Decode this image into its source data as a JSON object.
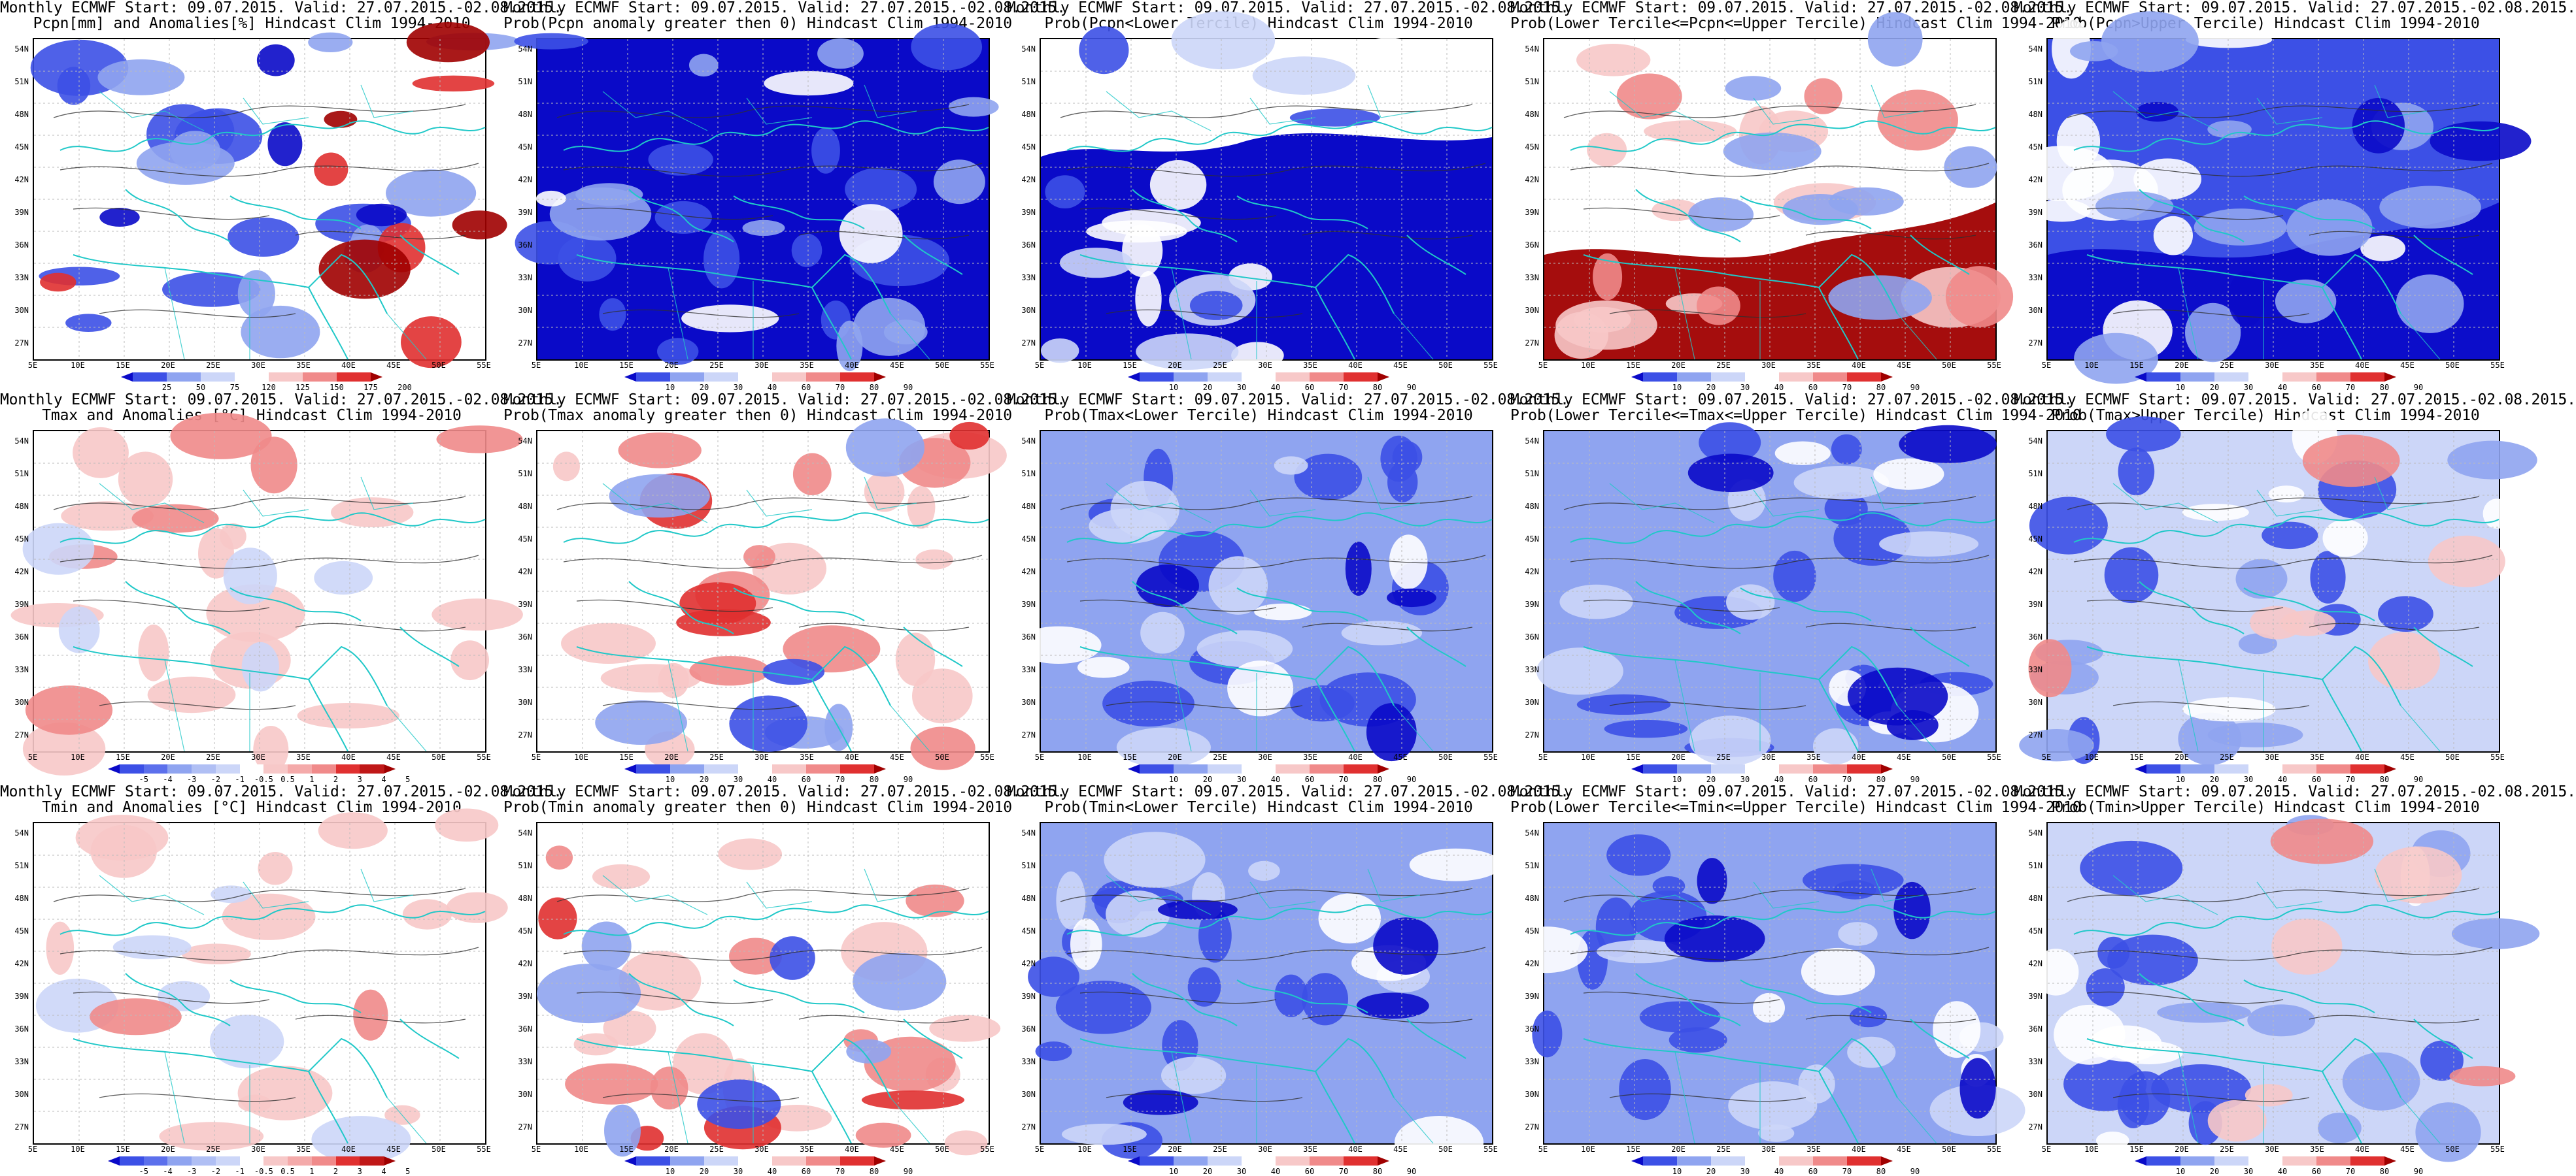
{
  "colors": {
    "deep_blue": "#0a0ac8",
    "blue": "#3c50e6",
    "light_blue": "#8fa4f0",
    "pale_blue": "#ccd6f8",
    "white": "#ffffff",
    "pale_red": "#f7c8c8",
    "light_red": "#f08a8a",
    "red": "#e03030",
    "dark_red": "#a00000",
    "coast": "#20c8c8",
    "contour": "#303030"
  },
  "lat_labels": [
    "54N",
    "51N",
    "48N",
    "45N",
    "42N",
    "39N",
    "36N",
    "33N",
    "30N",
    "27N"
  ],
  "lon_labels": [
    "5E",
    "10E",
    "15E",
    "20E",
    "25E",
    "30E",
    "35E",
    "40E",
    "45E",
    "50E",
    "55E"
  ],
  "panels": [
    {
      "line1": "Monthly ECMWF Start: 09.07.2015. Valid: 27.07.2015.-02.08.2015.",
      "line2": "Pcpn[mm] and Anomalies[%] Hindcast Clim 1994-2010",
      "scheme": "pcpn",
      "cbar": [
        "25",
        "50",
        "75",
        "120",
        "125",
        "150",
        "175",
        "200"
      ]
    },
    {
      "line1": "Monthly ECMWF Start: 09.07.2015. Valid: 27.07.2015.-02.08.2015.",
      "line2": "Prob(Pcpn anomaly greater then 0) Hindcast Clim 1994-2010",
      "scheme": "lowblue",
      "cbar": [
        "10",
        "20",
        "30",
        "40",
        "60",
        "70",
        "80",
        "90"
      ]
    },
    {
      "line1": "Monthly ECMWF Start: 09.07.2015. Valid: 27.07.2015.-02.08.2015.",
      "line2": "Prob(Pcpn<Lower Tercile) Hindcast Clim 1994-2010",
      "scheme": "deepblue",
      "cbar": [
        "10",
        "20",
        "30",
        "40",
        "60",
        "70",
        "80",
        "90"
      ]
    },
    {
      "line1": "Monthly ECMWF Start: 09.07.2015. Valid: 27.07.2015.-02.08.2015.",
      "line2": "Prob(Lower Tercile<=Pcpn<=Upper Tercile) Hindcast Clim 1994-2010",
      "scheme": "redsouth",
      "cbar": [
        "10",
        "20",
        "30",
        "40",
        "60",
        "70",
        "80",
        "90"
      ]
    },
    {
      "line1": "Monthly ECMWF Start: 09.07.2015. Valid: 27.07.2015.-02.08.2015.",
      "line2": "Prob(Pcpn>Upper Tercile) Hindcast Clim 1994-2010",
      "scheme": "bluesouth",
      "cbar": [
        "10",
        "20",
        "30",
        "40",
        "60",
        "70",
        "80",
        "90"
      ]
    },
    {
      "line1": "Monthly ECMWF Start: 09.07.2015. Valid: 27.07.2015.-02.08.2015.",
      "line2": "Tmax and Anomalies [°C] Hindcast Clim 1994-2010",
      "scheme": "warm",
      "cbar": [
        "-5",
        "-4",
        "-3",
        "-2",
        "-1",
        "-0.5",
        "0.5",
        "1",
        "2",
        "3",
        "4",
        "5"
      ]
    },
    {
      "line1": "Monthly ECMWF Start: 09.07.2015. Valid: 27.07.2015.-02.08.2015.",
      "line2": "Prob(Tmax anomaly greater then 0) Hindcast Clim 1994-2010",
      "scheme": "warmstrong",
      "cbar": [
        "10",
        "20",
        "30",
        "40",
        "60",
        "70",
        "80",
        "90"
      ]
    },
    {
      "line1": "Monthly ECMWF Start: 09.07.2015. Valid: 27.07.2015.-02.08.2015.",
      "line2": "Prob(Tmax<Lower Tercile) Hindcast Clim 1994-2010",
      "scheme": "blue",
      "cbar": [
        "10",
        "20",
        "30",
        "40",
        "60",
        "70",
        "80",
        "90"
      ]
    },
    {
      "line1": "Monthly ECMWF Start: 09.07.2015. Valid: 27.07.2015.-02.08.2015.",
      "line2": "Prob(Lower Tercile<=Tmax<=Upper Tercile) Hindcast Clim 1994-2010",
      "scheme": "blue",
      "cbar": [
        "10",
        "20",
        "30",
        "40",
        "60",
        "70",
        "80",
        "90"
      ]
    },
    {
      "line1": "Monthly ECMWF Start: 09.07.2015. Valid: 27.07.2015.-02.08.2015.",
      "line2": "Prob(Tmax>Upper Tercile) Hindcast Clim 1994-2010",
      "scheme": "mixed",
      "cbar": [
        "10",
        "20",
        "30",
        "40",
        "60",
        "70",
        "80",
        "90"
      ]
    },
    {
      "line1": "Monthly ECMWF Start: 09.07.2015. Valid: 27.07.2015.-02.08.2015.",
      "line2": "Tmin and Anomalies [°C] Hindcast Clim 1994-2010",
      "scheme": "warmlight",
      "cbar": [
        "-5",
        "-4",
        "-3",
        "-2",
        "-1",
        "-0.5",
        "0.5",
        "1",
        "2",
        "3",
        "4",
        "5"
      ]
    },
    {
      "line1": "Monthly ECMWF Start: 09.07.2015. Valid: 27.07.2015.-02.08.2015.",
      "line2": "Prob(Tmin anomaly greater then 0) Hindcast Clim 1994-2010",
      "scheme": "warmstrong",
      "cbar": [
        "10",
        "20",
        "30",
        "40",
        "60",
        "70",
        "80",
        "90"
      ]
    },
    {
      "line1": "Monthly ECMWF Start: 09.07.2015. Valid: 27.07.2015.-02.08.2015.",
      "line2": "Prob(Tmin<Lower Tercile) Hindcast Clim 1994-2010",
      "scheme": "blue",
      "cbar": [
        "10",
        "20",
        "30",
        "40",
        "60",
        "70",
        "80",
        "90"
      ]
    },
    {
      "line1": "Monthly ECMWF Start: 09.07.2015. Valid: 27.07.2015.-02.08.2015.",
      "line2": "Prob(Lower Tercile<=Tmin<=Upper Tercile) Hindcast Clim 1994-2010",
      "scheme": "blue",
      "cbar": [
        "10",
        "20",
        "30",
        "40",
        "60",
        "70",
        "80",
        "90"
      ]
    },
    {
      "line1": "Monthly ECMWF Start: 09.07.2015. Valid: 27.07.2015.-02.08.2015.",
      "line2": "Prob(Tmin>Upper Tercile) Hindcast Clim 1994-2010",
      "scheme": "mixed",
      "cbar": [
        "10",
        "20",
        "30",
        "40",
        "60",
        "70",
        "80",
        "90"
      ]
    }
  ]
}
